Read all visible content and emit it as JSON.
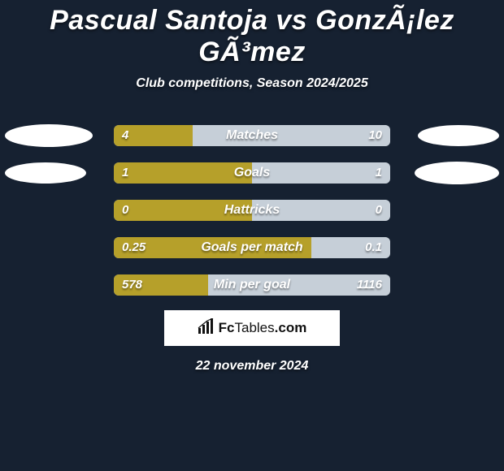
{
  "background_color": "#162131",
  "title": "Pascual Santoja vs GonzÃ¡lez GÃ³mez",
  "subtitle": "Club competitions, Season 2024/2025",
  "date": "22 november 2024",
  "logo": {
    "brand_strong": "Fc",
    "brand_light": "Tables",
    "brand_suffix": ".com"
  },
  "colors": {
    "left_fill": "#b6a02a",
    "right_fill": "#c6cfd8",
    "ellipse": "#ffffff",
    "text": "#ffffff"
  },
  "ellipse_sizes": [
    {
      "left_w": 108,
      "left_h": 28,
      "right_w": 100,
      "right_h": 26
    },
    {
      "left_w": 100,
      "left_h": 26,
      "right_w": 104,
      "right_h": 28
    },
    {
      "left_w": 0,
      "left_h": 0,
      "right_w": 0,
      "right_h": 0
    },
    {
      "left_w": 0,
      "left_h": 0,
      "right_w": 0,
      "right_h": 0
    },
    {
      "left_w": 0,
      "left_h": 0,
      "right_w": 0,
      "right_h": 0
    }
  ],
  "stats": [
    {
      "label": "Matches",
      "left_val": "4",
      "right_val": "10",
      "left_pct": 28.6,
      "right_pct": 71.4
    },
    {
      "label": "Goals",
      "left_val": "1",
      "right_val": "1",
      "left_pct": 50.0,
      "right_pct": 50.0
    },
    {
      "label": "Hattricks",
      "left_val": "0",
      "right_val": "0",
      "left_pct": 50.0,
      "right_pct": 50.0
    },
    {
      "label": "Goals per match",
      "left_val": "0.25",
      "right_val": "0.1",
      "left_pct": 71.4,
      "right_pct": 28.6
    },
    {
      "label": "Min per goal",
      "left_val": "578",
      "right_val": "1116",
      "left_pct": 34.1,
      "right_pct": 65.9
    }
  ]
}
